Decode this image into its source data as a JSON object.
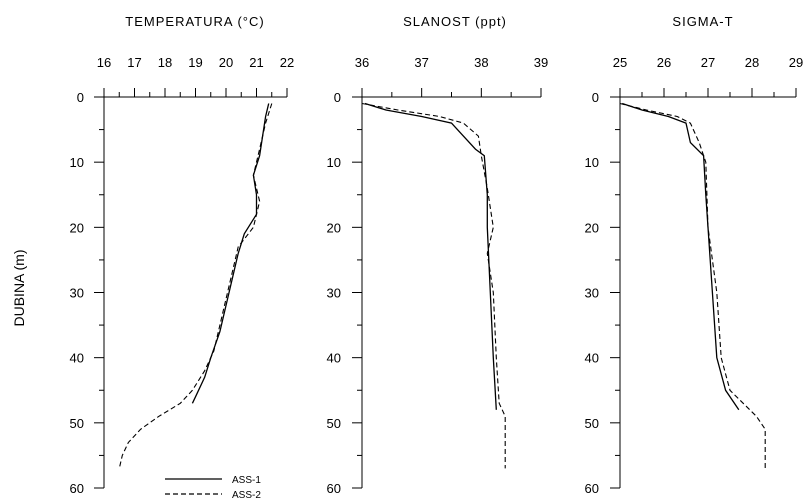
{
  "figure": {
    "ylabel": "DUBINA (m)"
  },
  "chart_data": [
    {
      "type": "line",
      "title": "TEMPERATURA (°C)",
      "xlim": [
        16,
        22
      ],
      "x_ticks": [
        "16",
        "17",
        "18",
        "19",
        "20",
        "21",
        "22"
      ],
      "ylim": [
        0,
        60
      ],
      "y_ticks": [
        "0",
        "10",
        "20",
        "30",
        "40",
        "50",
        "60"
      ],
      "ylabel": "DUBINA (m)",
      "y_inverted": true,
      "grid": false,
      "legend_position": "bottom",
      "series": [
        {
          "name": "ASS-1",
          "dash": "solid",
          "points": [
            [
              21.4,
              1
            ],
            [
              21.3,
              3
            ],
            [
              21.2,
              6
            ],
            [
              21.1,
              9
            ],
            [
              20.9,
              12
            ],
            [
              21.0,
              15
            ],
            [
              21.0,
              18
            ],
            [
              20.6,
              21
            ],
            [
              20.4,
              24
            ],
            [
              20.2,
              28
            ],
            [
              20.0,
              32
            ],
            [
              19.8,
              36
            ],
            [
              19.5,
              40
            ],
            [
              19.3,
              43
            ],
            [
              19.0,
              46
            ],
            [
              18.9,
              47
            ]
          ]
        },
        {
          "name": "ASS-2",
          "dash": "dashed",
          "points": [
            [
              21.5,
              1
            ],
            [
              21.3,
              4
            ],
            [
              21.1,
              8
            ],
            [
              20.9,
              12
            ],
            [
              21.1,
              16
            ],
            [
              20.9,
              20
            ],
            [
              20.4,
              23
            ],
            [
              20.2,
              27
            ],
            [
              20.0,
              31
            ],
            [
              19.8,
              35
            ],
            [
              19.6,
              39
            ],
            [
              19.3,
              42
            ],
            [
              18.9,
              45
            ],
            [
              18.5,
              47
            ],
            [
              17.8,
              49
            ],
            [
              17.2,
              51
            ],
            [
              16.8,
              53
            ],
            [
              16.6,
              55
            ],
            [
              16.5,
              57
            ]
          ]
        }
      ]
    },
    {
      "type": "line",
      "title": "SLANOST (ppt)",
      "xlim": [
        36,
        39
      ],
      "x_ticks": [
        "36",
        "37",
        "38",
        "39"
      ],
      "ylim": [
        0,
        60
      ],
      "y_ticks": [
        "0",
        "10",
        "20",
        "30",
        "40",
        "50",
        "60"
      ],
      "y_inverted": true,
      "grid": false,
      "series": [
        {
          "name": "ASS-1",
          "dash": "solid",
          "points": [
            [
              36.05,
              1
            ],
            [
              36.4,
              2
            ],
            [
              37.0,
              3
            ],
            [
              37.5,
              4
            ],
            [
              37.7,
              6
            ],
            [
              37.9,
              8
            ],
            [
              38.05,
              9
            ],
            [
              38.1,
              15
            ],
            [
              38.1,
              20
            ],
            [
              38.15,
              30
            ],
            [
              38.2,
              40
            ],
            [
              38.25,
              48
            ]
          ]
        },
        {
          "name": "ASS-2",
          "dash": "dashed",
          "points": [
            [
              36.0,
              1
            ],
            [
              36.6,
              2
            ],
            [
              37.3,
              3
            ],
            [
              37.7,
              4
            ],
            [
              37.95,
              6
            ],
            [
              38.0,
              9
            ],
            [
              38.1,
              14
            ],
            [
              38.2,
              20
            ],
            [
              38.1,
              24
            ],
            [
              38.2,
              30
            ],
            [
              38.25,
              40
            ],
            [
              38.3,
              47
            ],
            [
              38.4,
              49
            ],
            [
              38.4,
              57
            ]
          ]
        }
      ]
    },
    {
      "type": "line",
      "title": "SIGMA-T",
      "xlim": [
        25,
        29
      ],
      "x_ticks": [
        "25",
        "26",
        "27",
        "28",
        "29"
      ],
      "ylim": [
        0,
        60
      ],
      "y_ticks": [
        "0",
        "10",
        "20",
        "30",
        "40",
        "50",
        "60"
      ],
      "y_inverted": true,
      "grid": false,
      "series": [
        {
          "name": "ASS-1",
          "dash": "solid",
          "points": [
            [
              25.05,
              1
            ],
            [
              25.5,
              2
            ],
            [
              26.1,
              3
            ],
            [
              26.5,
              4
            ],
            [
              26.6,
              7
            ],
            [
              26.9,
              9
            ],
            [
              26.95,
              15
            ],
            [
              27.0,
              20
            ],
            [
              27.1,
              30
            ],
            [
              27.2,
              40
            ],
            [
              27.4,
              45
            ],
            [
              27.7,
              48
            ]
          ]
        },
        {
          "name": "ASS-2",
          "dash": "dashed",
          "points": [
            [
              25.0,
              1
            ],
            [
              25.6,
              2
            ],
            [
              26.3,
              3
            ],
            [
              26.6,
              4
            ],
            [
              26.8,
              7
            ],
            [
              26.95,
              10
            ],
            [
              27.0,
              20
            ],
            [
              27.2,
              30
            ],
            [
              27.3,
              40
            ],
            [
              27.5,
              45
            ],
            [
              27.8,
              47
            ],
            [
              28.1,
              49
            ],
            [
              28.3,
              51
            ],
            [
              28.3,
              57
            ]
          ]
        }
      ]
    }
  ]
}
